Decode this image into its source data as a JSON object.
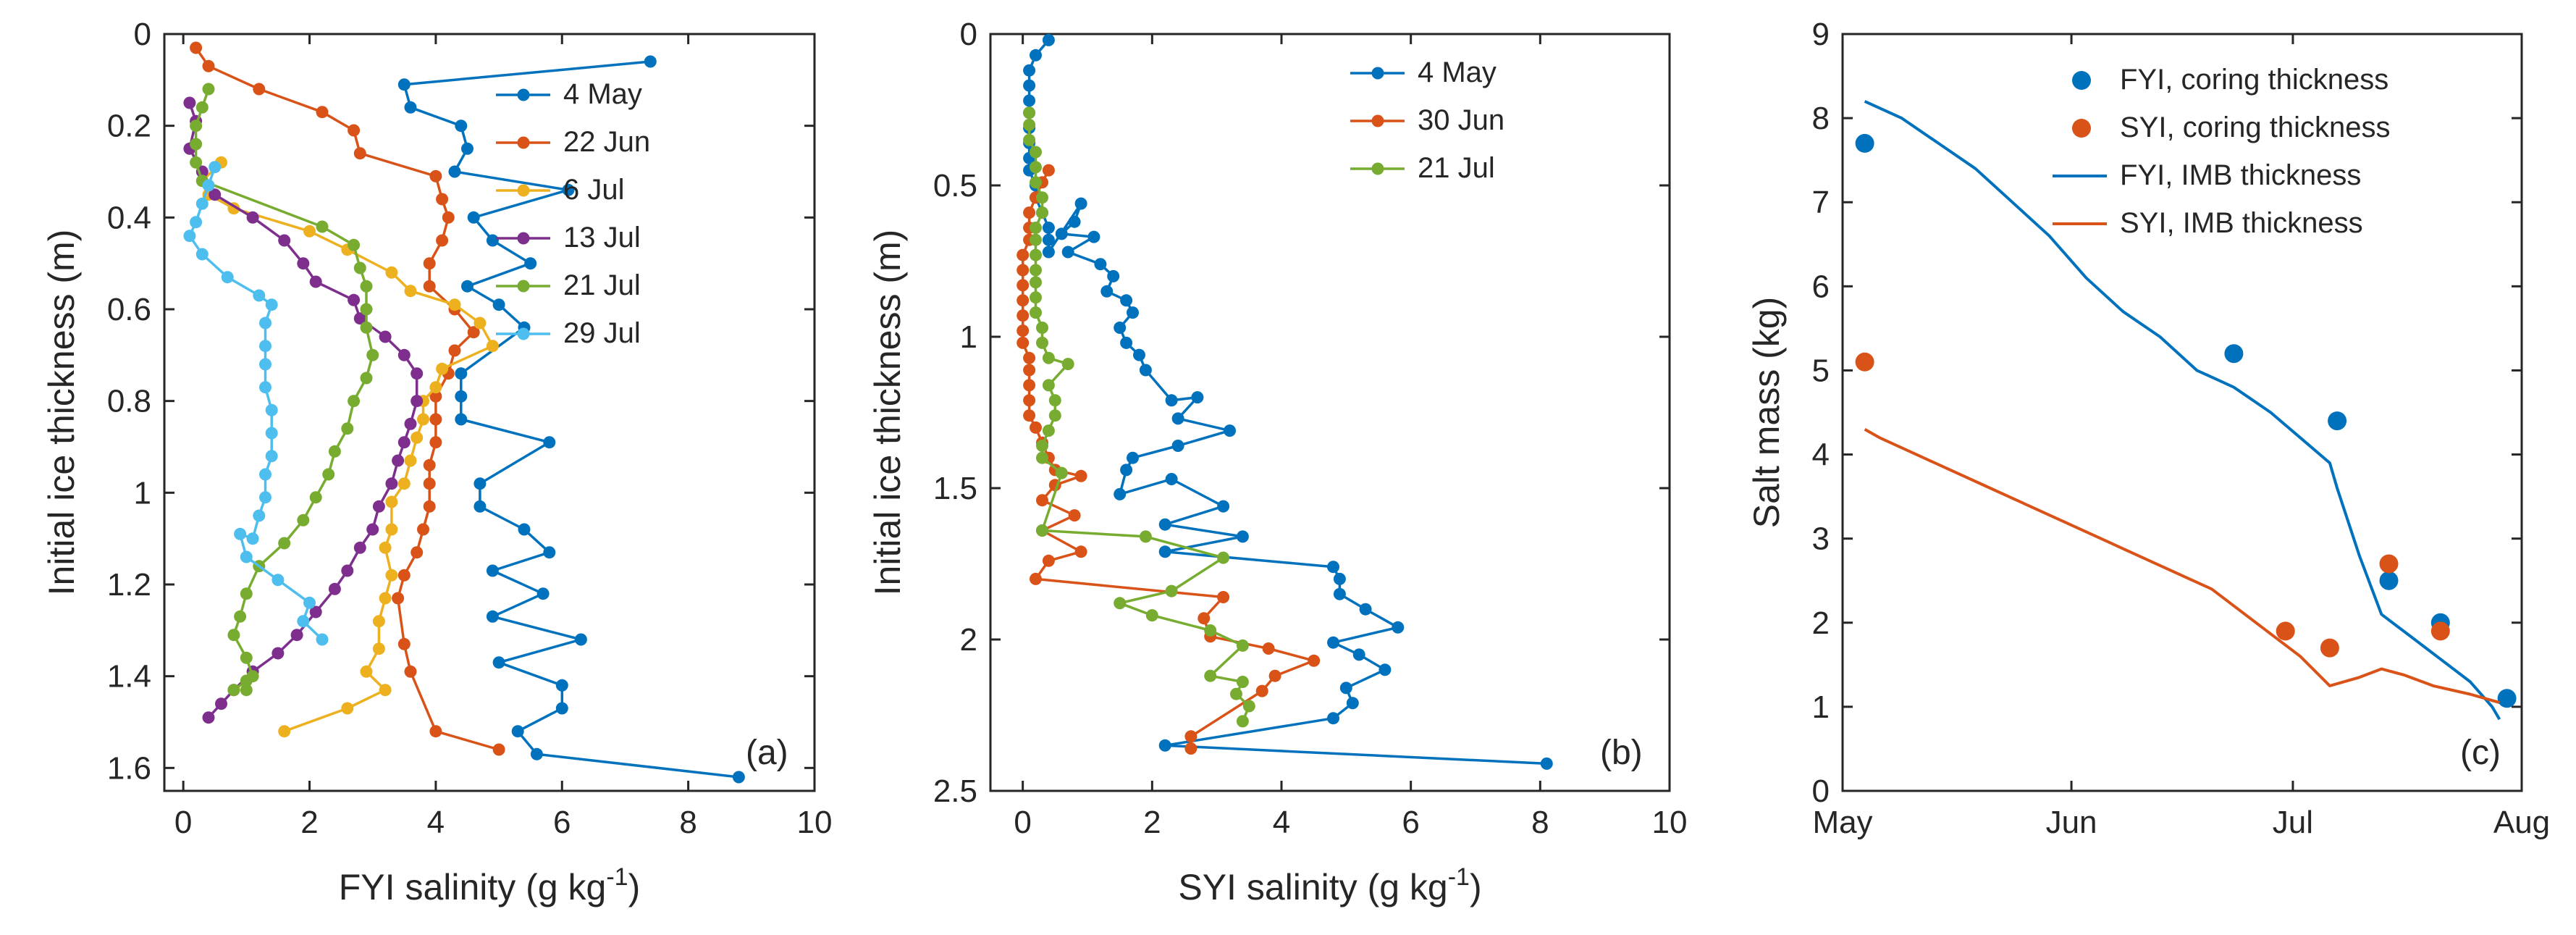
{
  "figure": {
    "colors": {
      "blue": "#0072BD",
      "orange": "#D95319",
      "yellow": "#EDB120",
      "purple": "#7E2F8E",
      "green": "#77AC30",
      "cyan": "#4DBEEE"
    }
  },
  "chart_data": [
    {
      "id": "a",
      "type": "line",
      "panel_label": "(a)",
      "xlabel": "FYI salinity (g kg",
      "xlabel_sup": "-1",
      "xlabel_tail": ")",
      "ylabel": "Initial ice thickness (m)",
      "xlim": [
        -0.3,
        10
      ],
      "ylim": [
        0,
        1.65
      ],
      "y_reversed": true,
      "xticks": [
        0,
        2,
        4,
        6,
        8,
        10
      ],
      "xtick_labels": [
        "0",
        "2",
        "4",
        "6",
        "8",
        "10"
      ],
      "yticks": [
        0,
        0.2,
        0.4,
        0.6,
        0.8,
        1.0,
        1.2,
        1.4,
        1.6
      ],
      "ytick_labels": [
        "0",
        "0.2",
        "0.4",
        "0.6",
        "0.8",
        "1",
        "1.2",
        "1.4",
        "1.6"
      ],
      "legend": [
        "4 May",
        "22 Jun",
        "6 Jul",
        "13 Jul",
        "21 Jul",
        "29 Jul"
      ],
      "series": [
        {
          "name": "4 May",
          "color": "#0072BD",
          "x": [
            7.4,
            3.5,
            3.6,
            4.4,
            4.5,
            4.3,
            6.1,
            4.6,
            4.9,
            5.5,
            4.5,
            5.0,
            5.4,
            4.4,
            4.4,
            4.4,
            5.8,
            4.7,
            4.7,
            5.4,
            5.8,
            4.9,
            5.7,
            4.9,
            6.3,
            5.0,
            6.0,
            6.0,
            5.3,
            5.6,
            8.8
          ],
          "y": [
            0.06,
            0.11,
            0.16,
            0.2,
            0.25,
            0.3,
            0.34,
            0.4,
            0.45,
            0.5,
            0.55,
            0.59,
            0.64,
            0.74,
            0.79,
            0.84,
            0.89,
            0.98,
            1.03,
            1.08,
            1.13,
            1.17,
            1.22,
            1.27,
            1.32,
            1.37,
            1.42,
            1.47,
            1.52,
            1.57,
            1.62
          ]
        },
        {
          "name": "22 Jun",
          "color": "#D95319",
          "x": [
            0.2,
            0.4,
            1.2,
            2.2,
            2.7,
            2.8,
            4.0,
            4.1,
            4.2,
            4.1,
            3.9,
            3.9,
            4.3,
            4.6,
            4.3,
            4.2,
            4.0,
            4.0,
            4.0,
            3.9,
            3.9,
            3.9,
            3.8,
            3.7,
            3.5,
            3.4,
            3.5,
            3.6,
            4.0,
            5.0
          ],
          "y": [
            0.03,
            0.07,
            0.12,
            0.17,
            0.21,
            0.26,
            0.31,
            0.36,
            0.4,
            0.45,
            0.5,
            0.55,
            0.6,
            0.65,
            0.69,
            0.74,
            0.79,
            0.84,
            0.89,
            0.94,
            0.98,
            1.03,
            1.08,
            1.13,
            1.18,
            1.23,
            1.33,
            1.39,
            1.52,
            1.56
          ]
        },
        {
          "name": "6 Jul",
          "color": "#EDB120",
          "x": [
            0.6,
            0.3,
            0.4,
            0.8,
            2.0,
            2.6,
            3.3,
            3.6,
            4.3,
            4.7,
            4.9,
            4.1,
            4.0,
            3.8,
            3.8,
            3.7,
            3.6,
            3.5,
            3.3,
            3.3,
            3.2,
            3.3,
            3.2,
            3.1,
            3.1,
            2.9,
            3.2,
            2.6,
            1.6
          ],
          "y": [
            0.28,
            0.32,
            0.35,
            0.38,
            0.43,
            0.47,
            0.52,
            0.56,
            0.59,
            0.63,
            0.68,
            0.73,
            0.77,
            0.8,
            0.84,
            0.88,
            0.93,
            0.98,
            1.02,
            1.08,
            1.12,
            1.18,
            1.23,
            1.28,
            1.34,
            1.39,
            1.43,
            1.47,
            1.52
          ]
        },
        {
          "name": "13 Jul",
          "color": "#7E2F8E",
          "x": [
            0.1,
            0.2,
            0.1,
            0.3,
            0.5,
            1.1,
            1.6,
            1.9,
            2.1,
            2.7,
            2.8,
            3.2,
            3.5,
            3.7,
            3.7,
            3.6,
            3.5,
            3.4,
            3.3,
            3.1,
            3.0,
            2.8,
            2.6,
            2.4,
            2.1,
            1.8,
            1.5,
            1.1,
            0.8,
            0.6,
            0.4
          ],
          "y": [
            0.15,
            0.19,
            0.25,
            0.3,
            0.35,
            0.4,
            0.45,
            0.5,
            0.54,
            0.58,
            0.62,
            0.66,
            0.7,
            0.74,
            0.8,
            0.85,
            0.89,
            0.93,
            0.98,
            1.03,
            1.08,
            1.12,
            1.17,
            1.21,
            1.26,
            1.31,
            1.35,
            1.39,
            1.43,
            1.46,
            1.49
          ]
        },
        {
          "name": "21 Jul",
          "color": "#77AC30",
          "x": [
            0.4,
            0.3,
            0.2,
            0.2,
            0.2,
            0.3,
            2.2,
            2.7,
            2.8,
            2.9,
            2.9,
            2.9,
            3.0,
            2.9,
            2.7,
            2.6,
            2.4,
            2.3,
            2.1,
            1.9,
            1.6,
            1.2,
            1.0,
            0.9,
            0.8,
            1.0,
            1.1,
            0.8,
            1.0,
            1.0
          ],
          "y": [
            0.12,
            0.16,
            0.2,
            0.24,
            0.28,
            0.32,
            0.42,
            0.46,
            0.51,
            0.55,
            0.6,
            0.64,
            0.7,
            0.75,
            0.8,
            0.86,
            0.91,
            0.96,
            1.01,
            1.06,
            1.11,
            1.16,
            1.22,
            1.27,
            1.31,
            1.36,
            1.4,
            1.43,
            1.41,
            1.43
          ]
        },
        {
          "name": "29 Jul",
          "color": "#4DBEEE",
          "x": [
            0.5,
            0.4,
            0.3,
            0.2,
            0.1,
            0.3,
            0.7,
            1.2,
            1.4,
            1.3,
            1.3,
            1.3,
            1.3,
            1.4,
            1.4,
            1.4,
            1.3,
            1.3,
            1.2,
            1.1,
            0.9,
            1.0,
            1.5,
            2.0,
            1.9,
            2.2
          ],
          "y": [
            0.29,
            0.33,
            0.37,
            0.41,
            0.44,
            0.48,
            0.53,
            0.57,
            0.59,
            0.63,
            0.68,
            0.72,
            0.77,
            0.82,
            0.87,
            0.92,
            0.96,
            1.01,
            1.05,
            1.1,
            1.09,
            1.14,
            1.19,
            1.24,
            1.28,
            1.32
          ]
        }
      ]
    },
    {
      "id": "b",
      "type": "line",
      "panel_label": "(b)",
      "xlabel": "SYI salinity (g kg",
      "xlabel_sup": "-1",
      "xlabel_tail": ")",
      "ylabel": "Initial ice thickness (m)",
      "xlim": [
        -0.5,
        10
      ],
      "ylim": [
        0,
        2.5
      ],
      "y_reversed": true,
      "xticks": [
        0,
        2,
        4,
        6,
        8,
        10
      ],
      "xtick_labels": [
        "0",
        "2",
        "4",
        "6",
        "8",
        "10"
      ],
      "yticks": [
        0,
        0.5,
        1.0,
        1.5,
        2.0,
        2.5
      ],
      "ytick_labels": [
        "0",
        "0.5",
        "1",
        "1.5",
        "2",
        "2.5"
      ],
      "legend": [
        "4 May",
        "30 Jun",
        "21 Jul"
      ],
      "series": [
        {
          "name": "4 May",
          "color": "#0072BD",
          "x": [
            0.4,
            0.2,
            0.1,
            0.1,
            0.1,
            0.1,
            0.1,
            0.1,
            0.1,
            0.1,
            0.2,
            0.2,
            0.3,
            0.4,
            0.4,
            0.4,
            0.9,
            0.8,
            0.6,
            1.1,
            0.7,
            1.2,
            1.4,
            1.3,
            1.6,
            1.7,
            1.5,
            1.6,
            1.8,
            1.9,
            2.3,
            2.7,
            2.4,
            3.2,
            2.4,
            1.7,
            1.6,
            1.5,
            2.3,
            3.1,
            2.2,
            3.4,
            2.2,
            4.8,
            4.9,
            4.9,
            5.3,
            5.8,
            4.8,
            5.2,
            5.6,
            5.0,
            5.1,
            4.8,
            2.2,
            8.1
          ],
          "y": [
            0.02,
            0.07,
            0.12,
            0.17,
            0.22,
            0.26,
            0.31,
            0.36,
            0.41,
            0.45,
            0.5,
            0.54,
            0.59,
            0.64,
            0.68,
            0.72,
            0.56,
            0.62,
            0.66,
            0.67,
            0.72,
            0.76,
            0.8,
            0.85,
            0.88,
            0.92,
            0.97,
            1.02,
            1.06,
            1.11,
            1.21,
            1.2,
            1.27,
            1.31,
            1.36,
            1.4,
            1.44,
            1.52,
            1.47,
            1.56,
            1.62,
            1.66,
            1.71,
            1.76,
            1.8,
            1.85,
            1.9,
            1.96,
            2.01,
            2.05,
            2.1,
            2.16,
            2.21,
            2.26,
            2.35,
            2.41
          ]
        },
        {
          "name": "30 Jun",
          "color": "#D95319",
          "x": [
            0.4,
            0.3,
            0.2,
            0.1,
            0.1,
            0.1,
            0.0,
            0.0,
            0.0,
            0.0,
            0.0,
            0.0,
            0.0,
            0.1,
            0.1,
            0.1,
            0.1,
            0.1,
            0.2,
            0.3,
            0.4,
            0.5,
            0.9,
            0.5,
            0.3,
            0.8,
            0.3,
            0.9,
            0.4,
            0.2,
            3.1,
            2.8,
            2.9,
            3.8,
            4.5,
            3.9,
            3.7,
            2.6,
            2.6
          ],
          "y": [
            0.45,
            0.49,
            0.54,
            0.59,
            0.64,
            0.68,
            0.73,
            0.78,
            0.83,
            0.88,
            0.93,
            0.98,
            1.02,
            1.07,
            1.11,
            1.16,
            1.21,
            1.26,
            1.3,
            1.35,
            1.4,
            1.44,
            1.46,
            1.49,
            1.54,
            1.59,
            1.64,
            1.71,
            1.74,
            1.8,
            1.86,
            1.93,
            1.99,
            2.03,
            2.07,
            2.12,
            2.17,
            2.32,
            2.36
          ]
        },
        {
          "name": "21 Jul",
          "color": "#77AC30",
          "x": [
            0.1,
            0.1,
            0.1,
            0.2,
            0.2,
            0.2,
            0.3,
            0.3,
            0.2,
            0.2,
            0.2,
            0.2,
            0.2,
            0.2,
            0.2,
            0.3,
            0.3,
            0.4,
            0.7,
            0.4,
            0.5,
            0.5,
            0.4,
            0.3,
            0.3,
            0.6,
            0.3,
            1.9,
            3.1,
            2.3,
            1.5,
            2.0,
            2.9,
            3.4,
            2.9,
            3.4,
            3.3,
            3.5,
            3.4
          ],
          "y": [
            0.26,
            0.3,
            0.35,
            0.39,
            0.44,
            0.49,
            0.54,
            0.59,
            0.64,
            0.68,
            0.73,
            0.78,
            0.82,
            0.87,
            0.92,
            0.97,
            1.02,
            1.07,
            1.09,
            1.16,
            1.21,
            1.26,
            1.31,
            1.36,
            1.4,
            1.45,
            1.64,
            1.66,
            1.73,
            1.84,
            1.88,
            1.92,
            1.97,
            2.02,
            2.12,
            2.14,
            2.18,
            2.22,
            2.27
          ]
        }
      ]
    },
    {
      "id": "c",
      "type": "line",
      "panel_label": "(c)",
      "xlabel": "",
      "ylabel": "Salt mass (kg)",
      "xlim": [
        0,
        92
      ],
      "ylim": [
        0,
        9
      ],
      "y_reversed": false,
      "xticks": [
        0,
        31,
        61,
        92
      ],
      "xtick_labels": [
        "May",
        "Jun",
        "Jul",
        "Aug"
      ],
      "yticks": [
        0,
        1,
        2,
        3,
        4,
        5,
        6,
        7,
        8,
        9
      ],
      "ytick_labels": [
        "0",
        "1",
        "2",
        "3",
        "4",
        "5",
        "6",
        "7",
        "8",
        "9"
      ],
      "legend": [
        "FYI, coring thickness",
        "SYI, coring thickness",
        "FYI, IMB thickness",
        "SYI, IMB thickness"
      ],
      "series": [
        {
          "name": "FYI, coring thickness",
          "kind": "markers",
          "color": "#0072BD",
          "x": [
            3,
            53,
            67,
            74,
            81,
            90
          ],
          "y": [
            7.7,
            5.2,
            4.4,
            2.5,
            2.0,
            1.1
          ]
        },
        {
          "name": "SYI, coring thickness",
          "kind": "markers",
          "color": "#D95319",
          "x": [
            3,
            60,
            66,
            74,
            81
          ],
          "y": [
            5.1,
            1.9,
            1.7,
            2.7,
            1.9
          ]
        },
        {
          "name": "FYI, IMB thickness",
          "kind": "line",
          "color": "#0072BD",
          "x": [
            3,
            8,
            13,
            18,
            23,
            28,
            33,
            38,
            43,
            48,
            53,
            58,
            62,
            66,
            67,
            70,
            73,
            76,
            79,
            82,
            85,
            88,
            89
          ],
          "y": [
            8.2,
            8.0,
            7.7,
            7.4,
            7.0,
            6.6,
            6.1,
            5.7,
            5.4,
            5.0,
            4.8,
            4.5,
            4.2,
            3.9,
            3.6,
            2.8,
            2.1,
            1.9,
            1.7,
            1.5,
            1.3,
            1.0,
            0.85
          ]
        },
        {
          "name": "SYI, IMB thickness",
          "kind": "line",
          "color": "#D95319",
          "x": [
            3,
            5,
            10,
            20,
            30,
            40,
            50,
            56,
            62,
            66,
            70,
            73,
            76,
            80,
            85,
            89
          ],
          "y": [
            4.3,
            4.2,
            4.0,
            3.6,
            3.2,
            2.8,
            2.4,
            2.0,
            1.6,
            1.25,
            1.35,
            1.45,
            1.38,
            1.25,
            1.15,
            1.05
          ]
        }
      ]
    }
  ]
}
